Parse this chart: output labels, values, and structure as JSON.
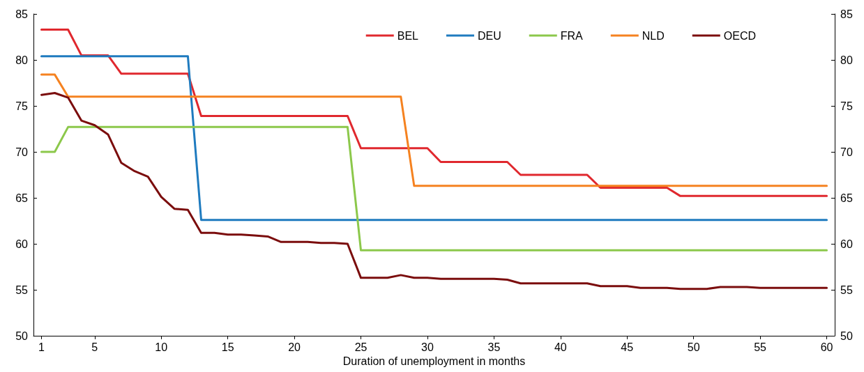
{
  "chart_data": {
    "type": "line",
    "xlabel": "Duration of unemployment in months",
    "x": [
      1,
      2,
      3,
      4,
      5,
      6,
      7,
      8,
      9,
      10,
      11,
      12,
      13,
      14,
      15,
      16,
      17,
      18,
      19,
      20,
      21,
      22,
      23,
      24,
      25,
      26,
      27,
      28,
      29,
      30,
      31,
      32,
      33,
      34,
      35,
      36,
      37,
      38,
      39,
      40,
      41,
      42,
      43,
      44,
      45,
      46,
      47,
      48,
      49,
      50,
      51,
      52,
      53,
      54,
      55,
      56,
      57,
      58,
      59,
      60
    ],
    "series": [
      {
        "name": "BEL",
        "color": "#e0282e",
        "values": [
          83.3,
          83.3,
          83.3,
          80.5,
          80.5,
          80.5,
          78.5,
          78.5,
          78.5,
          78.5,
          78.5,
          78.5,
          73.9,
          73.9,
          73.9,
          73.9,
          73.9,
          73.9,
          73.9,
          73.9,
          73.9,
          73.9,
          73.9,
          73.9,
          70.4,
          70.4,
          70.4,
          70.4,
          70.4,
          70.4,
          68.9,
          68.9,
          68.9,
          68.9,
          68.9,
          68.9,
          67.5,
          67.5,
          67.5,
          67.5,
          67.5,
          67.5,
          66.1,
          66.1,
          66.1,
          66.1,
          66.1,
          66.1,
          65.2,
          65.2,
          65.2,
          65.2,
          65.2,
          65.2,
          65.2,
          65.2,
          65.2,
          65.2,
          65.2,
          65.2
        ]
      },
      {
        "name": "DEU",
        "color": "#1f7bbf",
        "values": [
          80.4,
          80.4,
          80.4,
          80.4,
          80.4,
          80.4,
          80.4,
          80.4,
          80.4,
          80.4,
          80.4,
          80.4,
          62.6,
          62.6,
          62.6,
          62.6,
          62.6,
          62.6,
          62.6,
          62.6,
          62.6,
          62.6,
          62.6,
          62.6,
          62.6,
          62.6,
          62.6,
          62.6,
          62.6,
          62.6,
          62.6,
          62.6,
          62.6,
          62.6,
          62.6,
          62.6,
          62.6,
          62.6,
          62.6,
          62.6,
          62.6,
          62.6,
          62.6,
          62.6,
          62.6,
          62.6,
          62.6,
          62.6,
          62.6,
          62.6,
          62.6,
          62.6,
          62.6,
          62.6,
          62.6,
          62.6,
          62.6,
          62.6,
          62.6,
          62.6
        ]
      },
      {
        "name": "FRA",
        "color": "#8cc84b",
        "values": [
          70.0,
          70.0,
          72.7,
          72.7,
          72.7,
          72.7,
          72.7,
          72.7,
          72.7,
          72.7,
          72.7,
          72.7,
          72.7,
          72.7,
          72.7,
          72.7,
          72.7,
          72.7,
          72.7,
          72.7,
          72.7,
          72.7,
          72.7,
          72.7,
          59.3,
          59.3,
          59.3,
          59.3,
          59.3,
          59.3,
          59.3,
          59.3,
          59.3,
          59.3,
          59.3,
          59.3,
          59.3,
          59.3,
          59.3,
          59.3,
          59.3,
          59.3,
          59.3,
          59.3,
          59.3,
          59.3,
          59.3,
          59.3,
          59.3,
          59.3,
          59.3,
          59.3,
          59.3,
          59.3,
          59.3,
          59.3,
          59.3,
          59.3,
          59.3,
          59.3
        ]
      },
      {
        "name": "NLD",
        "color": "#f58220",
        "values": [
          78.4,
          78.4,
          76.0,
          76.0,
          76.0,
          76.0,
          76.0,
          76.0,
          76.0,
          76.0,
          76.0,
          76.0,
          76.0,
          76.0,
          76.0,
          76.0,
          76.0,
          76.0,
          76.0,
          76.0,
          76.0,
          76.0,
          76.0,
          76.0,
          76.0,
          76.0,
          76.0,
          76.0,
          66.3,
          66.3,
          66.3,
          66.3,
          66.3,
          66.3,
          66.3,
          66.3,
          66.3,
          66.3,
          66.3,
          66.3,
          66.3,
          66.3,
          66.3,
          66.3,
          66.3,
          66.3,
          66.3,
          66.3,
          66.3,
          66.3,
          66.3,
          66.3,
          66.3,
          66.3,
          66.3,
          66.3,
          66.3,
          66.3,
          66.3,
          66.3
        ]
      },
      {
        "name": "OECD",
        "color": "#7b0d0d",
        "values": [
          76.2,
          76.4,
          75.9,
          73.4,
          72.9,
          71.9,
          68.8,
          67.9,
          67.3,
          65.1,
          63.8,
          63.7,
          61.2,
          61.2,
          61.0,
          61.0,
          60.9,
          60.8,
          60.2,
          60.2,
          60.2,
          60.1,
          60.1,
          60.0,
          56.3,
          56.3,
          56.3,
          56.6,
          56.3,
          56.3,
          56.2,
          56.2,
          56.2,
          56.2,
          56.2,
          56.1,
          55.7,
          55.7,
          55.7,
          55.7,
          55.7,
          55.7,
          55.4,
          55.4,
          55.4,
          55.2,
          55.2,
          55.2,
          55.1,
          55.1,
          55.1,
          55.3,
          55.3,
          55.3,
          55.2,
          55.2,
          55.2,
          55.2,
          55.2,
          55.2
        ]
      }
    ],
    "xlim": [
      0.4,
      60.6
    ],
    "xticks": [
      1,
      5,
      10,
      15,
      20,
      25,
      30,
      35,
      40,
      45,
      50,
      55,
      60
    ],
    "ylim": [
      50,
      85
    ],
    "yticks": [
      50,
      55,
      60,
      65,
      70,
      75,
      80,
      85
    ],
    "y2lim": [
      50,
      85
    ],
    "y2ticks": [
      50,
      55,
      60,
      65,
      70,
      75,
      80,
      85
    ],
    "grid": false,
    "legend": "top right",
    "marker": "none",
    "line_style": "solid"
  }
}
